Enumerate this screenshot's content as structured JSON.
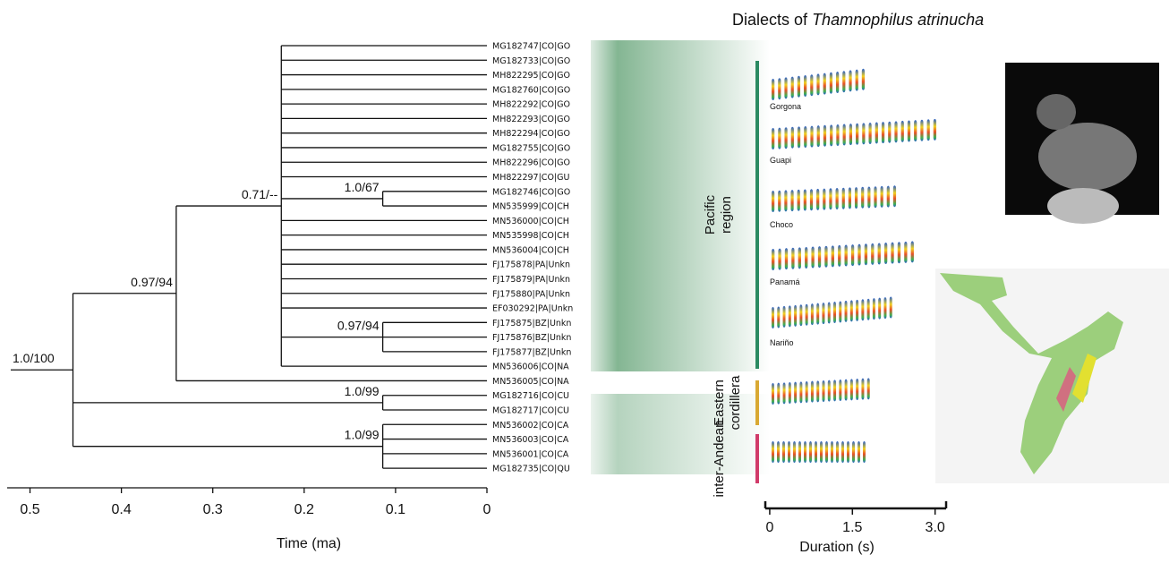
{
  "title_prefix": "Dialects of",
  "title_species": "Thamnophilus atrinucha",
  "time_axis": {
    "label": "Time (ma)",
    "xlim": [
      0.525,
      0
    ],
    "xticks": [
      0.5,
      0.4,
      0.3,
      0.2,
      0.1,
      0
    ]
  },
  "tree": {
    "tips": [
      "MG182747|CO|GO",
      "MG182733|CO|GO",
      "MH822295|CO|GO",
      "MG182760|CO|GO",
      "MH822292|CO|GO",
      "MH822293|CO|GO",
      "MH822294|CO|GO",
      "MG182755|CO|GO",
      "MH822296|CO|GO",
      "MH822297|CO|GU",
      "MG182746|CO|GO",
      "MN535999|CO|CH",
      "MN536000|CO|CH",
      "MN535998|CO|CH",
      "MN536004|CO|CH",
      "FJ175878|PA|Unkn",
      "FJ175879|PA|Unkn",
      "FJ175880|PA|Unkn",
      "EF030292|PA|Unkn",
      "FJ175875|BZ|Unkn",
      "FJ175876|BZ|Unkn",
      "FJ175877|BZ|Unkn",
      "MN536006|CO|NA",
      "MN536005|CO|NA",
      "MG182716|CO|CU",
      "MG182717|CO|CU",
      "MN536002|CO|CA",
      "MN536003|CO|CA",
      "MN536001|CO|CA",
      "MG182735|CO|QU"
    ],
    "nodes": [
      {
        "label": "1.0/100",
        "age": 0.453
      },
      {
        "label": "0.97/94",
        "age": 0.34
      },
      {
        "label": "0.71/--",
        "age": 0.225
      },
      {
        "label": "1.0/67",
        "age": 0.114
      },
      {
        "label": "0.97/94",
        "age": 0.114
      },
      {
        "label": "1.0/99",
        "age": 0.114
      },
      {
        "label": "1.0/99",
        "age": 0.114
      }
    ]
  },
  "dialects": [
    "Gorgona",
    "Guapi",
    "Choco",
    "Panamá",
    "Nariño"
  ],
  "regions": [
    {
      "label": "Pacific region",
      "color": "#2b8a62"
    },
    {
      "label": "Eastern cordillera",
      "color": "#d9a934"
    },
    {
      "label": "inter-Andean",
      "color": "#d13b6a"
    }
  ],
  "duration_axis": {
    "label": "Duration (s)",
    "xlim": [
      -0.08,
      3.2
    ],
    "xticks": [
      0,
      1.5,
      {
        "value": 3,
        "label": "3.0"
      }
    ]
  }
}
